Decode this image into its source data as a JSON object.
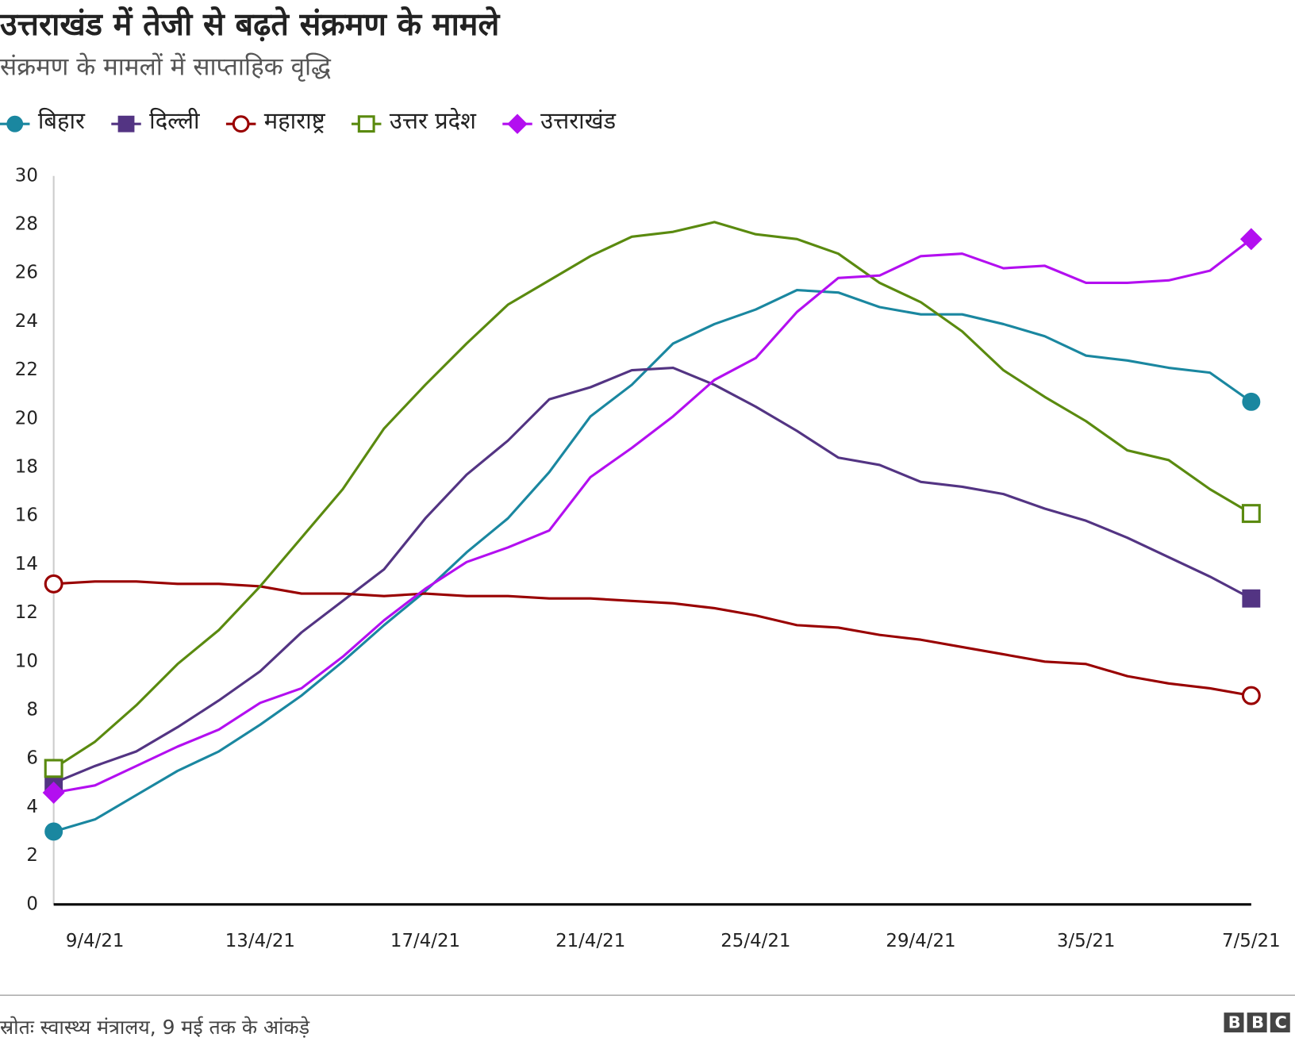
{
  "chart_data": {
    "type": "line",
    "title": "उत्तराखंड में तेजी से बढ़ते संक्रमण के मामले",
    "subtitle": "संक्रमण के मामलों में साप्ताहिक वृद्धि",
    "source": "स्रोतः स्वास्थ्य मंत्रालय, 9 मई तक के आंकड़े",
    "logo": "BBC",
    "categories": [
      null,
      "9/4/21",
      null,
      null,
      null,
      "13/4/21",
      null,
      null,
      null,
      "17/4/21",
      null,
      null,
      null,
      "21/4/21",
      null,
      null,
      null,
      "25/4/21",
      null,
      null,
      null,
      "29/4/21",
      null,
      null,
      null,
      "3/5/21",
      null,
      null,
      null,
      "7/5/21"
    ],
    "ylim": [
      0,
      30
    ],
    "yticks": [
      0,
      2,
      4,
      6,
      8,
      10,
      12,
      14,
      16,
      18,
      20,
      22,
      24,
      26,
      28,
      30
    ],
    "grid": false,
    "series": [
      {
        "name": "बिहार",
        "color": "#1a87a0",
        "marker": "circle-filled",
        "values": [
          3.0,
          3.5,
          4.5,
          5.5,
          6.3,
          7.4,
          8.6,
          10.0,
          11.5,
          12.9,
          14.5,
          15.9,
          17.8,
          20.1,
          21.4,
          23.1,
          23.9,
          24.5,
          25.3,
          25.2,
          24.6,
          24.3,
          24.3,
          23.9,
          23.4,
          22.6,
          22.4,
          22.1,
          21.9,
          20.7
        ]
      },
      {
        "name": "दिल्ली",
        "color": "#533483",
        "marker": "square-filled",
        "values": [
          5.0,
          5.7,
          6.3,
          7.3,
          8.4,
          9.6,
          11.2,
          12.5,
          13.8,
          15.9,
          17.7,
          19.1,
          20.8,
          21.3,
          22.0,
          22.1,
          21.4,
          20.5,
          19.5,
          18.4,
          18.1,
          17.4,
          17.2,
          16.9,
          16.3,
          15.8,
          15.1,
          14.3,
          13.5,
          12.6
        ]
      },
      {
        "name": "महाराष्ट्र",
        "color": "#990000",
        "marker": "circle-open",
        "values": [
          13.2,
          13.3,
          13.3,
          13.2,
          13.2,
          13.1,
          12.8,
          12.8,
          12.7,
          12.8,
          12.7,
          12.7,
          12.6,
          12.6,
          12.5,
          12.4,
          12.2,
          11.9,
          11.5,
          11.4,
          11.1,
          10.9,
          10.6,
          10.3,
          10.0,
          9.9,
          9.4,
          9.1,
          8.9,
          8.6
        ]
      },
      {
        "name": "उत्तर प्रदेश",
        "color": "#5a8a0f",
        "marker": "square-open",
        "values": [
          5.6,
          6.7,
          8.2,
          9.9,
          11.3,
          13.1,
          15.1,
          17.1,
          19.6,
          21.4,
          23.1,
          24.7,
          25.7,
          26.7,
          27.5,
          27.7,
          28.1,
          27.6,
          27.4,
          26.8,
          25.6,
          24.8,
          23.6,
          22.0,
          20.9,
          19.9,
          18.7,
          18.3,
          17.1,
          16.1
        ]
      },
      {
        "name": "उत्तराखंड",
        "color": "#b30ff0",
        "marker": "diamond-filled",
        "values": [
          4.6,
          4.9,
          5.7,
          6.5,
          7.2,
          8.3,
          8.9,
          10.2,
          11.7,
          13.0,
          14.1,
          14.7,
          15.4,
          17.6,
          18.8,
          20.1,
          21.6,
          22.5,
          24.4,
          25.8,
          25.9,
          26.7,
          26.8,
          26.2,
          26.3,
          25.6,
          25.6,
          25.7,
          26.1,
          27.4
        ]
      }
    ]
  }
}
